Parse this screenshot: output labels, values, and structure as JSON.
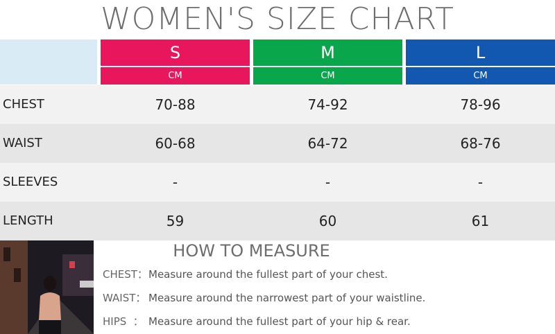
{
  "header": {
    "title": "WOMEN'S SIZE CHART"
  },
  "table": {
    "columns": [
      "S",
      "M",
      "L"
    ],
    "units": [
      "CM",
      "CM",
      "CM"
    ],
    "rows": [
      [
        "CHEST",
        "70-88",
        "74-92",
        "78-96"
      ],
      [
        "WAIST",
        "60-68",
        "64-72",
        "68-76"
      ],
      [
        "SLEEVES",
        "-",
        "-",
        "-"
      ],
      [
        "LENGTH",
        "59",
        "60",
        "61"
      ]
    ]
  },
  "measure": {
    "title": "HOW TO MEASURE",
    "items": [
      {
        "label": "CHEST：",
        "text": "Measure around the fullest part of your chest."
      },
      {
        "label": "WAIST：",
        "text": "Measure around the narrowest part of your waistline."
      },
      {
        "label": "HIPS  ：",
        "text": "Measure around the fullest part of your hip & rear."
      }
    ]
  }
}
